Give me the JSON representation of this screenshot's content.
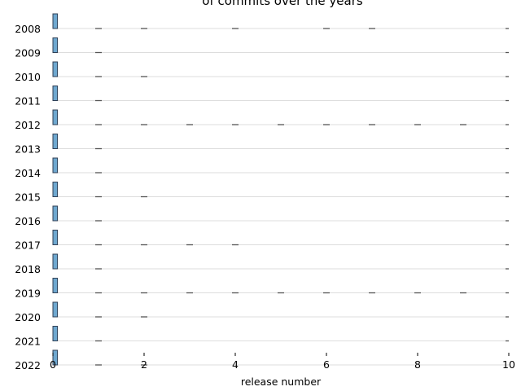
{
  "chart_data": {
    "type": "bar",
    "title": "of commits over the years",
    "xlabel": "release number",
    "ylabel": "",
    "orientation": "horizontal",
    "categories": [
      "2008",
      "2009",
      "2010",
      "2011",
      "2012",
      "2013",
      "2014",
      "2015",
      "2016",
      "2017",
      "2018",
      "2019",
      "2020",
      "2021",
      "2022"
    ],
    "x_ticks": [
      "0",
      "2",
      "4",
      "6",
      "8",
      "10"
    ],
    "xlim": [
      0,
      10
    ],
    "grid": "horizontal",
    "series": [
      {
        "values": [
          0.1,
          0.1,
          0.1,
          0.1,
          0.1,
          0.1,
          0.1,
          0.1,
          0.1,
          0.1,
          0.1,
          0.1,
          0.1,
          0.1,
          0.1
        ]
      }
    ],
    "dash_positions": [
      [
        1,
        2,
        4,
        6,
        7,
        10
      ],
      [
        1,
        10
      ],
      [
        1,
        2,
        10
      ],
      [
        1,
        10
      ],
      [
        1,
        2,
        3,
        4,
        5,
        6,
        7,
        8,
        9,
        10
      ],
      [
        1,
        10
      ],
      [
        1,
        10
      ],
      [
        1,
        2,
        10
      ],
      [
        1,
        10
      ],
      [
        1,
        2,
        3,
        4,
        10
      ],
      [
        1,
        10
      ],
      [
        1,
        2,
        3,
        4,
        5,
        6,
        7,
        8,
        9,
        10
      ],
      [
        1,
        2,
        10
      ],
      [
        1,
        10
      ],
      [
        1,
        2
      ]
    ],
    "colors": {
      "bar_fill": "#6fa8d0",
      "bar_edge": "#2f3f55",
      "grid": "#dddddd",
      "dash": "#555555"
    }
  }
}
